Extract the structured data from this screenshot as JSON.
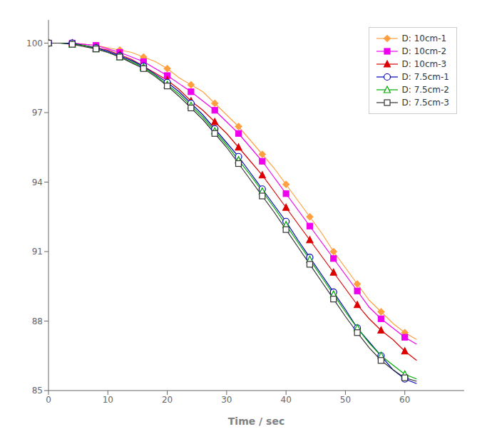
{
  "chart_data": {
    "type": "line",
    "xlabel": "Time / sec",
    "xlim": [
      0,
      70
    ],
    "ylim": [
      85,
      101
    ],
    "xticks": [
      0,
      10,
      20,
      30,
      40,
      50,
      60
    ],
    "yticks": [
      85,
      88,
      91,
      94,
      97,
      100
    ],
    "grid": false,
    "legend": "upper right",
    "x": [
      0,
      2,
      4,
      6,
      8,
      10,
      12,
      14,
      16,
      18,
      20,
      22,
      24,
      26,
      28,
      30,
      32,
      34,
      36,
      38,
      40,
      42,
      44,
      46,
      48,
      50,
      52,
      54,
      56,
      58,
      60,
      62
    ],
    "series": [
      {
        "name": "D: 10cm-1",
        "color": "#FFA040",
        "marker": "diamond",
        "values": [
          100.0,
          100.0,
          100.0,
          99.95,
          99.9,
          99.8,
          99.7,
          99.6,
          99.4,
          99.2,
          98.9,
          98.5,
          98.2,
          97.9,
          97.4,
          96.9,
          96.4,
          95.8,
          95.2,
          94.6,
          93.9,
          93.2,
          92.5,
          91.8,
          91.0,
          90.3,
          89.6,
          88.9,
          88.4,
          87.9,
          87.5,
          87.2
        ]
      },
      {
        "name": "D: 10cm-2",
        "color": "#EE00EE",
        "marker": "square",
        "values": [
          100.0,
          100.0,
          100.0,
          99.95,
          99.9,
          99.75,
          99.6,
          99.4,
          99.2,
          98.9,
          98.6,
          98.25,
          97.9,
          97.5,
          97.1,
          96.6,
          96.1,
          95.5,
          94.9,
          94.2,
          93.5,
          92.8,
          92.1,
          91.4,
          90.7,
          90.0,
          89.3,
          88.6,
          88.1,
          87.7,
          87.3,
          87.0
        ]
      },
      {
        "name": "D: 10cm-3",
        "color": "#DD0000",
        "marker": "triangle",
        "values": [
          100.0,
          100.0,
          100.0,
          99.9,
          99.8,
          99.7,
          99.5,
          99.3,
          99.0,
          98.7,
          98.4,
          98.0,
          97.5,
          97.1,
          96.6,
          96.1,
          95.5,
          94.9,
          94.3,
          93.6,
          92.9,
          92.2,
          91.5,
          90.8,
          90.1,
          89.4,
          88.7,
          88.1,
          87.6,
          87.2,
          86.7,
          86.3
        ]
      },
      {
        "name": "D: 7.5cm-1",
        "color": "#0000BB",
        "marker": "circle_open",
        "values": [
          100.0,
          100.0,
          100.0,
          99.9,
          99.8,
          99.65,
          99.45,
          99.25,
          99.0,
          98.65,
          98.3,
          97.9,
          97.4,
          96.9,
          96.3,
          95.7,
          95.1,
          94.4,
          93.7,
          93.0,
          92.3,
          91.5,
          90.75,
          90.0,
          89.25,
          88.5,
          87.7,
          87.1,
          86.5,
          85.9,
          85.5,
          85.3
        ]
      },
      {
        "name": "D: 7.5cm-2",
        "color": "#00AA00",
        "marker": "triangle_open",
        "values": [
          100.0,
          100.0,
          99.95,
          99.9,
          99.75,
          99.6,
          99.4,
          99.2,
          98.95,
          98.6,
          98.2,
          97.8,
          97.3,
          96.8,
          96.2,
          95.6,
          94.95,
          94.3,
          93.6,
          92.9,
          92.15,
          91.4,
          90.65,
          89.9,
          89.15,
          88.4,
          87.7,
          87.05,
          86.5,
          86.1,
          85.7,
          85.5
        ]
      },
      {
        "name": "D: 7.5cm-3",
        "color": "#333333",
        "marker": "square_open",
        "values": [
          100.0,
          100.0,
          99.95,
          99.85,
          99.75,
          99.6,
          99.4,
          99.15,
          98.9,
          98.55,
          98.15,
          97.7,
          97.2,
          96.7,
          96.1,
          95.5,
          94.8,
          94.1,
          93.4,
          92.7,
          91.95,
          91.2,
          90.45,
          89.7,
          88.95,
          88.2,
          87.5,
          86.85,
          86.3,
          85.9,
          85.55,
          85.4
        ]
      }
    ]
  }
}
